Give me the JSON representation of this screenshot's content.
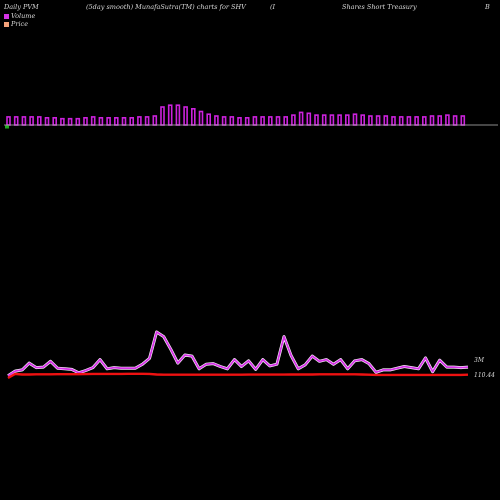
{
  "header": {
    "left": "Daily PVM",
    "middle": "(5day smooth) MunafaSutra(TM) charts for SHV",
    "bracket": "(I",
    "right": "Shares Short Treasury",
    "far_right": "B"
  },
  "legend": {
    "volume_label": "Volume",
    "price_label": "Price"
  },
  "colors": {
    "bars": "#cc22dd",
    "bar_first": "#22aa22",
    "volume_line": "#d533e6",
    "volume_line_glow": "#ffffff",
    "price_line": "#ee1111",
    "baseline": "#bbbbbb",
    "background": "#000000"
  },
  "labels": {
    "volume_value": "3M",
    "price_value": "110.44"
  },
  "chart_data": {
    "type": "bar",
    "bars_relative_volume": [
      0.45,
      0.45,
      0.45,
      0.45,
      0.45,
      0.4,
      0.4,
      0.35,
      0.35,
      0.35,
      0.4,
      0.45,
      0.4,
      0.4,
      0.4,
      0.4,
      0.4,
      0.45,
      0.45,
      0.5,
      1.0,
      1.1,
      1.1,
      1.0,
      0.9,
      0.75,
      0.6,
      0.5,
      0.45,
      0.45,
      0.4,
      0.4,
      0.45,
      0.45,
      0.45,
      0.45,
      0.45,
      0.55,
      0.7,
      0.65,
      0.55,
      0.55,
      0.55,
      0.55,
      0.55,
      0.6,
      0.55,
      0.5,
      0.5,
      0.5,
      0.45,
      0.45,
      0.45,
      0.45,
      0.45,
      0.5,
      0.5,
      0.55,
      0.5,
      0.5
    ],
    "volume_line": [
      2.2,
      2.6,
      2.7,
      3.3,
      2.9,
      2.95,
      3.45,
      2.85,
      2.8,
      2.75,
      2.45,
      2.65,
      2.9,
      3.6,
      2.8,
      2.9,
      2.85,
      2.85,
      2.85,
      3.2,
      3.7,
      6.0,
      5.6,
      4.5,
      3.3,
      4.0,
      3.9,
      2.8,
      3.2,
      3.25,
      3.0,
      2.8,
      3.6,
      3.0,
      3.5,
      2.75,
      3.6,
      3.05,
      3.2,
      5.6,
      3.95,
      2.8,
      3.15,
      3.9,
      3.45,
      3.6,
      3.2,
      3.6,
      2.8,
      3.5,
      3.6,
      3.25,
      2.5,
      2.7,
      2.7,
      2.85,
      3.0,
      2.9,
      2.8,
      3.75,
      2.55,
      3.55,
      2.95,
      2.95,
      2.9,
      2.95
    ],
    "price_line": [
      110.2,
      110.5,
      110.46,
      110.46,
      110.47,
      110.47,
      110.47,
      110.48,
      110.48,
      110.48,
      110.48,
      110.49,
      110.5,
      110.5,
      110.5,
      110.5,
      110.5,
      110.51,
      110.51,
      110.51,
      110.5,
      110.46,
      110.44,
      110.44,
      110.44,
      110.44,
      110.44,
      110.44,
      110.44,
      110.44,
      110.44,
      110.44,
      110.44,
      110.44,
      110.45,
      110.45,
      110.45,
      110.45,
      110.45,
      110.45,
      110.46,
      110.46,
      110.46,
      110.46,
      110.47,
      110.47,
      110.47,
      110.47,
      110.47,
      110.47,
      110.46,
      110.44,
      110.43,
      110.43,
      110.43,
      110.43,
      110.43,
      110.43,
      110.43,
      110.43,
      110.43,
      110.43,
      110.43,
      110.43,
      110.43,
      110.44
    ]
  }
}
